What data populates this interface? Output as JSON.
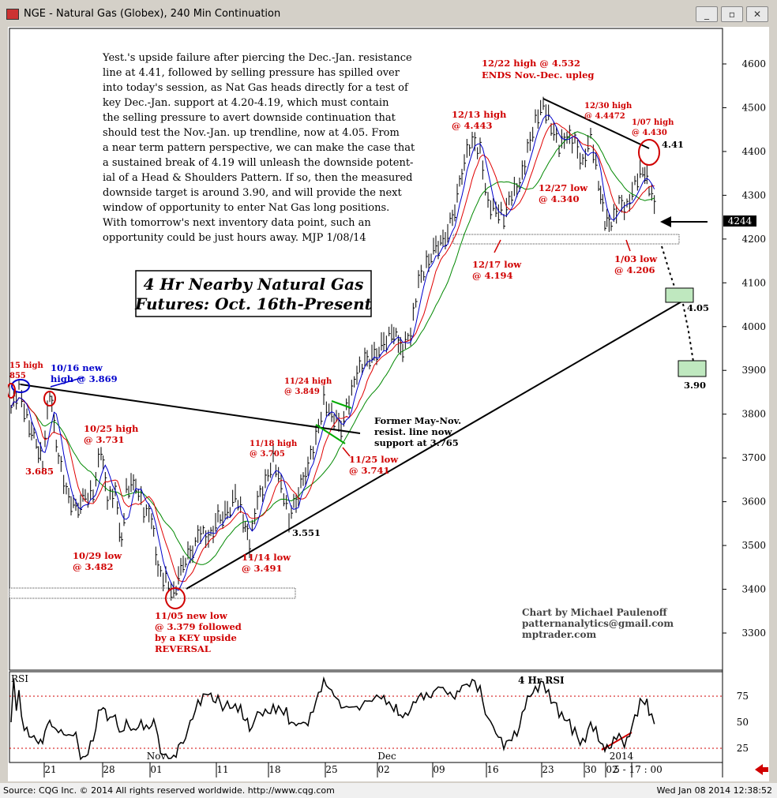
{
  "window": {
    "title": "NGE - Natural Gas (Globex), 240 Min Continuation",
    "minimize_label": "_",
    "restore_label": "▫",
    "close_label": "✕"
  },
  "footer": {
    "source": "Source: CQG Inc. © 2014 All rights reserved worldwide. http://www.cqg.com",
    "timestamp": "Wed Jan 08 2014 12:38:52"
  },
  "chart_data": {
    "type": "candlestick",
    "title": "4 Hr Nearby Natural Gas Futures: Oct. 16th-Present",
    "title_line1": "4 Hr Nearby Natural Gas",
    "title_line2": "Futures:  Oct. 16th-Present",
    "y_axis": {
      "range": [
        3250,
        4660
      ],
      "ticks": [
        3300,
        3400,
        3500,
        3600,
        3700,
        3800,
        3900,
        4000,
        4100,
        4200,
        4300,
        4400,
        4500,
        4600
      ]
    },
    "last_price": "4244",
    "x_ticks": [
      "21",
      "28",
      "Nov",
      "01",
      "11",
      "18",
      "25",
      "Dec",
      "02",
      "09",
      "16",
      "23",
      "30",
      "02",
      "2014",
      "5 - 17 : 00"
    ],
    "commentary": [
      "Yest.'s upside failure after piercing the Dec.-Jan. resistance",
      "line at 4.41, followed by selling pressure has spilled over",
      "into today's session, as Nat Gas heads directly for a test of",
      "key Dec.-Jan. support at 4.20-4.19, which must contain",
      "the selling pressure to avert downside continuation that",
      "should test the Nov.-Jan. up trendline, now at 4.05.  From",
      "a near term pattern perspective, we can make the case that",
      "a sustained break of 4.19 will unleash the downside potent-",
      "ial of a Head & Shoulders Pattern. If so, then the measured",
      "downside target is around 3.90, and will provide the next",
      "window of opportunity to enter Nat Gas long positions.",
      "With tomorrow's next inventory data point, such an",
      "opportunity could be just hours away. MJP 1/08/14"
    ],
    "annotations": {
      "oct15_a": "15 high",
      "oct15_b": "855",
      "oct16_a": "10/16 new",
      "oct16_b": "high @ 3.869",
      "oct25_a": "10/25 high",
      "oct25_b": "@ 3.731",
      "lvl_3685": "3.685",
      "oct29_a": "10/29 low",
      "oct29_b": "@ 3.482",
      "nov05_a": "11/05 new low",
      "nov05_b": "@ 3.379 followed",
      "nov05_c": "by a KEY upside",
      "nov05_d": "REVERSAL",
      "nov14_a": "11/14 low",
      "nov14_b": "@ 3.491",
      "nov18_a": "11/18 high",
      "nov18_b": "@ 3.705",
      "lvl_3551": "3.551",
      "nov24_a": "11/24 high",
      "nov24_b": "@ 3.849",
      "nov25_a": "11/25 low",
      "nov25_b": "@ 3.741",
      "former_a": "Former May-Nov.",
      "former_b": "resist. line now",
      "former_c": "support at 3.765",
      "dec13_a": "12/13 high",
      "dec13_b": "@ 4.443",
      "dec17_a": "12/17 low",
      "dec17_b": "@ 4.194",
      "dec22_a": "12/22 high @ 4.532",
      "dec22_b": "ENDS Nov.-Dec. upleg",
      "dec27_a": "12/27 low",
      "dec27_b": "@ 4.340",
      "dec30_a": "12/30 high",
      "dec30_b": "@ 4.4472",
      "jan07_a": "1/07 high",
      "jan07_b": "@ 4.430",
      "lvl_441": "4.41",
      "jan03_a": "1/03 low",
      "jan03_b": "@ 4.206",
      "lvl_405": "4.05",
      "lvl_390": "3.90",
      "credit_a": "Chart by Michael Paulenoff",
      "credit_b": "patternanalytics@gmail.com",
      "credit_c": "mptrader.com"
    },
    "rsi": {
      "label": "RSI",
      "title": "4 Hr RSI",
      "ticks": [
        75,
        50,
        25
      ],
      "range": [
        10,
        95
      ]
    },
    "colors": {
      "annotation_red": "#d00000",
      "annotation_blue": "#0000cc",
      "ma_red": "#e00000",
      "ma_green": "#008800",
      "ma_blue": "#0000cc",
      "box_green": "#bfe8bf"
    }
  }
}
